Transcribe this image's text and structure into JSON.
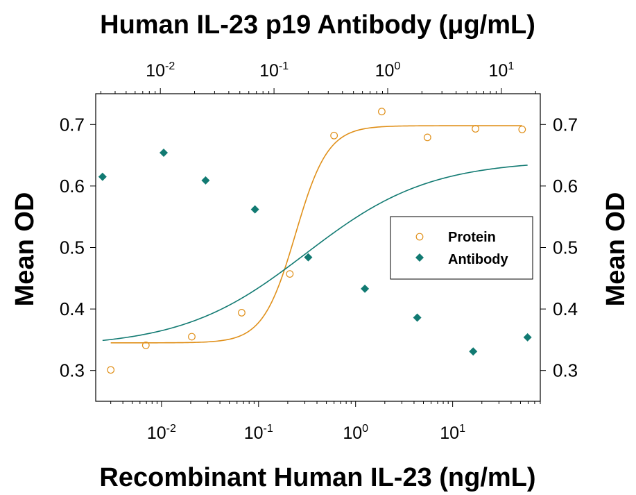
{
  "chart_data": {
    "type": "scatter",
    "title": "Human IL-23 p19 Antibody (μg/mL)",
    "xlabel": "Recombinant Human IL-23 (ng/mL)",
    "ylabel_left": "Mean OD",
    "ylabel_right": "Mean OD",
    "x_scale": "log",
    "x_bottom": {
      "range": [
        0.0021,
        80
      ],
      "ticks": [
        0.01,
        0.1,
        1,
        10
      ],
      "tick_labels": [
        {
          "base": "10",
          "exp": "-2"
        },
        {
          "base": "10",
          "exp": "-1"
        },
        {
          "base": "10",
          "exp": "0"
        },
        {
          "base": "10",
          "exp": "1"
        }
      ]
    },
    "x_top": {
      "range": [
        0.0027,
        22
      ],
      "ticks": [
        0.01,
        0.1,
        1,
        10
      ],
      "tick_labels": [
        {
          "base": "10",
          "exp": "-2"
        },
        {
          "base": "10",
          "exp": "-1"
        },
        {
          "base": "10",
          "exp": "0"
        },
        {
          "base": "10",
          "exp": "1"
        }
      ]
    },
    "y": {
      "range": [
        0.25,
        0.75
      ],
      "ticks": [
        0.3,
        0.4,
        0.5,
        0.6,
        0.7
      ],
      "tick_labels": [
        "0.3",
        "0.4",
        "0.5",
        "0.6",
        "0.7"
      ]
    },
    "legend": {
      "position": "right",
      "entries": [
        "Protein",
        "Antibody"
      ]
    },
    "series": [
      {
        "name": "Protein",
        "axis": "bottom",
        "marker": "open-circle",
        "color": "#E0901A",
        "x": [
          0.003,
          0.0069,
          0.0205,
          0.067,
          0.21,
          0.6,
          1.86,
          5.5,
          17.2,
          52
        ],
        "y": [
          0.301,
          0.341,
          0.355,
          0.394,
          0.457,
          0.682,
          0.721,
          0.679,
          0.693,
          0.692
        ],
        "fit": {
          "bottom": 0.345,
          "top": 0.698,
          "ec50": 0.24,
          "hill": 2.6
        }
      },
      {
        "name": "Antibody",
        "axis": "top",
        "marker": "filled-diamond",
        "color": "#117A72",
        "x": [
          0.0031,
          0.0107,
          0.025,
          0.068,
          0.2,
          0.63,
          1.82,
          5.65,
          17
        ],
        "y": [
          0.615,
          0.654,
          0.609,
          0.562,
          0.484,
          0.433,
          0.386,
          0.331,
          0.354
        ],
        "fit": {
          "bottom": 0.338,
          "top": 0.642,
          "ec50": 0.19,
          "hill": 0.8
        }
      }
    ]
  }
}
